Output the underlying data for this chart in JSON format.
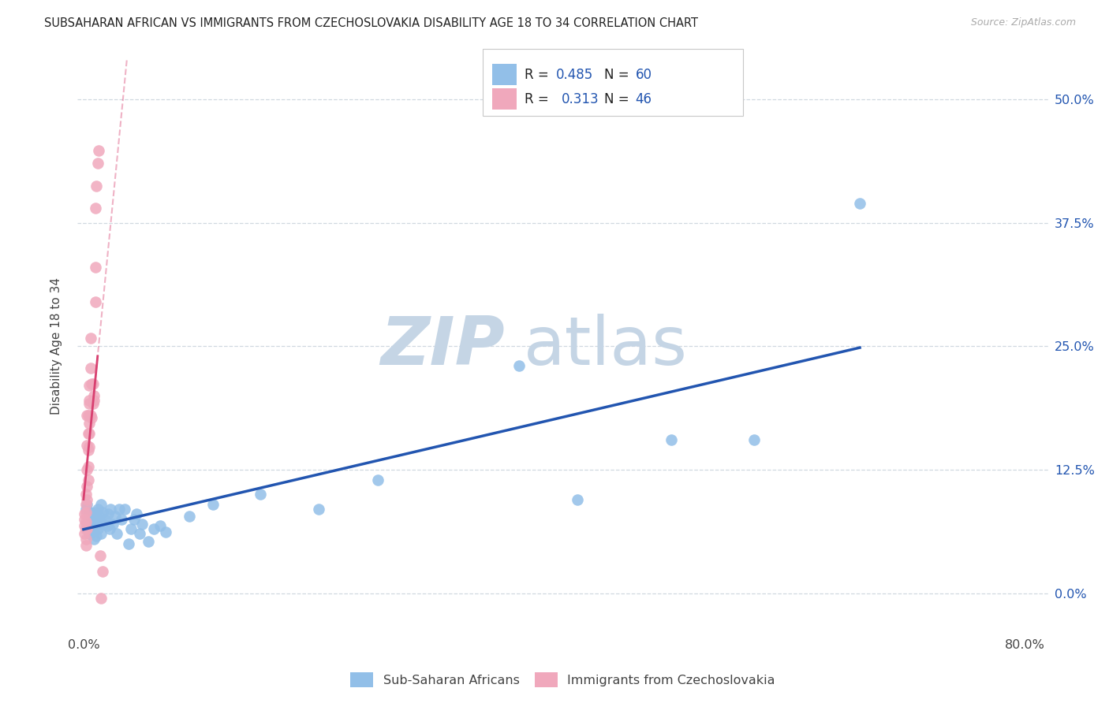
{
  "title": "SUBSAHARAN AFRICAN VS IMMIGRANTS FROM CZECHOSLOVAKIA DISABILITY AGE 18 TO 34 CORRELATION CHART",
  "source": "Source: ZipAtlas.com",
  "ylabel": "Disability Age 18 to 34",
  "xlim": [
    -0.005,
    0.82
  ],
  "ylim": [
    -0.04,
    0.54
  ],
  "yticks": [
    0.0,
    0.125,
    0.25,
    0.375,
    0.5
  ],
  "ytick_labels": [
    "0.0%",
    "12.5%",
    "25.0%",
    "37.5%",
    "50.0%"
  ],
  "xticks": [
    0.0,
    0.2,
    0.4,
    0.6,
    0.8
  ],
  "xtick_labels": [
    "0.0%",
    "",
    "",
    "",
    "80.0%"
  ],
  "blue_R": "0.485",
  "blue_N": "60",
  "pink_R": "0.313",
  "pink_N": "46",
  "blue_color": "#92bfe8",
  "pink_color": "#f0a8bc",
  "blue_line_color": "#2255b0",
  "pink_line_color": "#d84070",
  "axis_color": "#2255b0",
  "grid_color": "#d0d8e0",
  "blue_scatter_x": [
    0.002,
    0.003,
    0.003,
    0.004,
    0.004,
    0.005,
    0.005,
    0.005,
    0.006,
    0.006,
    0.006,
    0.007,
    0.007,
    0.008,
    0.008,
    0.009,
    0.009,
    0.01,
    0.01,
    0.011,
    0.011,
    0.012,
    0.012,
    0.013,
    0.014,
    0.015,
    0.015,
    0.016,
    0.017,
    0.018,
    0.02,
    0.021,
    0.022,
    0.023,
    0.025,
    0.027,
    0.028,
    0.03,
    0.032,
    0.035,
    0.038,
    0.04,
    0.043,
    0.045,
    0.048,
    0.05,
    0.055,
    0.06,
    0.065,
    0.07,
    0.09,
    0.11,
    0.15,
    0.2,
    0.25,
    0.37,
    0.42,
    0.5,
    0.57,
    0.66
  ],
  "blue_scatter_y": [
    0.085,
    0.07,
    0.09,
    0.075,
    0.065,
    0.08,
    0.072,
    0.06,
    0.075,
    0.082,
    0.065,
    0.078,
    0.068,
    0.08,
    0.062,
    0.075,
    0.055,
    0.082,
    0.068,
    0.075,
    0.058,
    0.085,
    0.065,
    0.078,
    0.072,
    0.09,
    0.06,
    0.082,
    0.07,
    0.075,
    0.068,
    0.08,
    0.065,
    0.085,
    0.07,
    0.078,
    0.06,
    0.085,
    0.075,
    0.085,
    0.05,
    0.065,
    0.075,
    0.08,
    0.06,
    0.07,
    0.052,
    0.065,
    0.068,
    0.062,
    0.078,
    0.09,
    0.1,
    0.085,
    0.115,
    0.23,
    0.095,
    0.155,
    0.155,
    0.395
  ],
  "pink_scatter_x": [
    0.001,
    0.001,
    0.001,
    0.001,
    0.002,
    0.002,
    0.002,
    0.002,
    0.002,
    0.002,
    0.002,
    0.003,
    0.003,
    0.003,
    0.003,
    0.003,
    0.003,
    0.004,
    0.004,
    0.004,
    0.004,
    0.004,
    0.005,
    0.005,
    0.005,
    0.005,
    0.005,
    0.005,
    0.006,
    0.006,
    0.006,
    0.007,
    0.007,
    0.008,
    0.008,
    0.009,
    0.009,
    0.01,
    0.01,
    0.01,
    0.011,
    0.012,
    0.013,
    0.014,
    0.015,
    0.016
  ],
  "pink_scatter_y": [
    0.075,
    0.068,
    0.08,
    0.06,
    0.072,
    0.065,
    0.082,
    0.055,
    0.048,
    0.09,
    0.1,
    0.108,
    0.125,
    0.15,
    0.18,
    0.065,
    0.095,
    0.115,
    0.128,
    0.145,
    0.162,
    0.18,
    0.148,
    0.172,
    0.195,
    0.162,
    0.192,
    0.21,
    0.228,
    0.258,
    0.18,
    0.178,
    0.212,
    0.192,
    0.212,
    0.195,
    0.2,
    0.33,
    0.39,
    0.295,
    0.412,
    0.435,
    0.448,
    0.038,
    -0.005,
    0.022
  ],
  "watermark_zip_color": "#c5d5e5",
  "watermark_atlas_color": "#c5d5e5"
}
